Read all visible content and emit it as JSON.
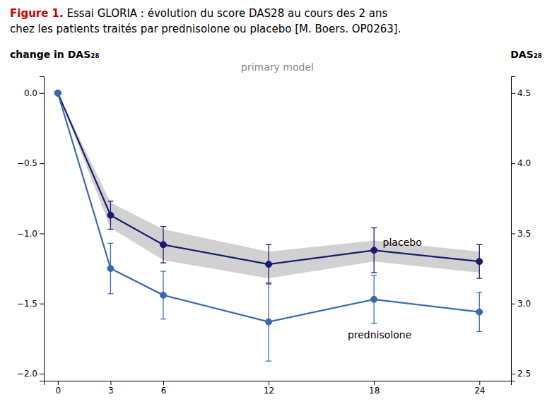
{
  "chart_data": {
    "type": "line",
    "title": [
      "Figure 1.",
      " Essai GLORIA : évolution du score DAS28 au cours des 2 ans",
      "chez les patients traités par prednisolone ou placebo [M. Boers. OP0263]."
    ],
    "subtitle": "primary model",
    "ylabel": "change in DAS₂₈",
    "y2label": "DAS₂₈",
    "x": [
      0,
      3,
      6,
      12,
      18,
      24
    ],
    "xlim": [
      -0.8,
      25.8
    ],
    "xticks": [
      0,
      3,
      6,
      12,
      18,
      24
    ],
    "ylim": [
      -2.05,
      0.12
    ],
    "yticks": [
      {
        "value": -2.0,
        "label": "−2.0"
      },
      {
        "value": -1.5,
        "label": "−1.5"
      },
      {
        "value": -1.0,
        "label": "−1.0"
      },
      {
        "value": -0.5,
        "label": "−0.5"
      },
      {
        "value": 0.0,
        "label": "0.0"
      }
    ],
    "y2lim": [
      2.45,
      4.62
    ],
    "y2ticks": [
      2.5,
      {
        "value": 3.0,
        "label": "3.0"
      },
      3.5,
      {
        "value": 4.0,
        "label": "4.0"
      },
      4.5
    ],
    "grid": false,
    "band": {
      "upper": [
        0.0,
        -0.78,
        -0.97,
        -1.13,
        -1.05,
        -1.13
      ],
      "lower": [
        0.0,
        -0.96,
        -1.19,
        -1.32,
        -1.2,
        -1.28
      ],
      "color": "#cccccc"
    },
    "series": [
      {
        "color": "#1a1a6e",
        "marker": "circle",
        "values": [
          0.0,
          -0.87,
          -1.08,
          -1.22,
          -1.12,
          -1.2
        ],
        "error_low": [
          0.0,
          0.1,
          0.13,
          0.14,
          0.16,
          0.12
        ],
        "error_high": [
          0.0,
          0.1,
          0.13,
          0.14,
          0.16,
          0.12
        ]
      },
      {
        "color": "#3a6aad",
        "marker": "circle",
        "values": [
          0.0,
          -1.25,
          -1.44,
          -1.63,
          -1.47,
          -1.56
        ],
        "error_low": [
          0.0,
          0.18,
          0.17,
          0.28,
          0.17,
          0.14
        ],
        "error_high": [
          0.0,
          0.18,
          0.17,
          0.28,
          0.17,
          0.14
        ]
      }
    ],
    "annotations": [
      {
        "text": "placebo",
        "x": 18.5,
        "y": -1.07
      },
      {
        "text": "prednisolone",
        "x": 16.5,
        "y": -1.73
      }
    ]
  }
}
